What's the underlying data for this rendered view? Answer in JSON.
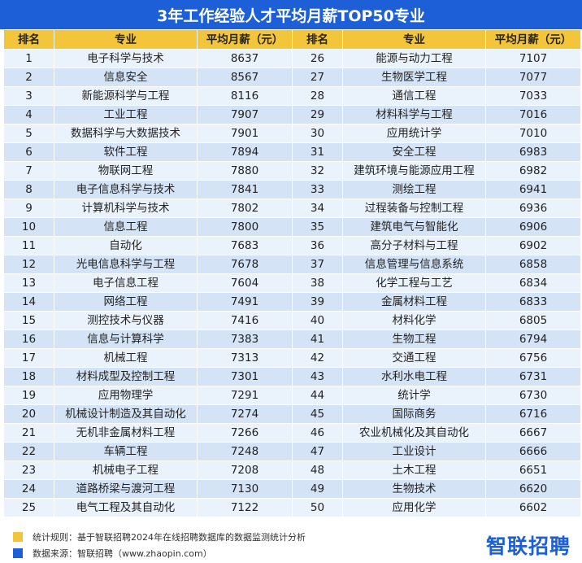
{
  "chart_data": {
    "type": "table",
    "title": "3年工作经验人才平均月薪TOP50专业",
    "columns": [
      "排名",
      "专业",
      "平均月薪（元）"
    ],
    "rows": [
      {
        "rank": "1",
        "major": "电子科学与技术",
        "salary": 8637
      },
      {
        "rank": "2",
        "major": "信息安全",
        "salary": 8567
      },
      {
        "rank": "3",
        "major": "新能源科学与工程",
        "salary": 8116
      },
      {
        "rank": "4",
        "major": "工业工程",
        "salary": 7907
      },
      {
        "rank": "5",
        "major": "数据科学与大数据技术",
        "salary": 7901
      },
      {
        "rank": "6",
        "major": "软件工程",
        "salary": 7894
      },
      {
        "rank": "7",
        "major": "物联网工程",
        "salary": 7880
      },
      {
        "rank": "8",
        "major": "电子信息科学与技术",
        "salary": 7841
      },
      {
        "rank": "9",
        "major": "计算机科学与技术",
        "salary": 7802
      },
      {
        "rank": "10",
        "major": "信息工程",
        "salary": 7800
      },
      {
        "rank": "11",
        "major": "自动化",
        "salary": 7683
      },
      {
        "rank": "12",
        "major": "光电信息科学与工程",
        "salary": 7678
      },
      {
        "rank": "13",
        "major": "电子信息工程",
        "salary": 7604
      },
      {
        "rank": "14",
        "major": "网络工程",
        "salary": 7491
      },
      {
        "rank": "15",
        "major": "测控技术与仪器",
        "salary": 7416
      },
      {
        "rank": "16",
        "major": "信息与计算科学",
        "salary": 7383
      },
      {
        "rank": "17",
        "major": "机械工程",
        "salary": 7313
      },
      {
        "rank": "18",
        "major": "材料成型及控制工程",
        "salary": 7301
      },
      {
        "rank": "19",
        "major": "应用物理学",
        "salary": 7291
      },
      {
        "rank": "20",
        "major": "机械设计制造及其自动化",
        "salary": 7274
      },
      {
        "rank": "21",
        "major": "无机非金属材料工程",
        "salary": 7266
      },
      {
        "rank": "22",
        "major": "车辆工程",
        "salary": 7248
      },
      {
        "rank": "23",
        "major": "机械电子工程",
        "salary": 7208
      },
      {
        "rank": "24",
        "major": "道路桥梁与渡河工程",
        "salary": 7130
      },
      {
        "rank": "25",
        "major": "电气工程及其自动化",
        "salary": 7122
      },
      {
        "rank": "26",
        "major": "能源与动力工程",
        "salary": 7107
      },
      {
        "rank": "27",
        "major": "生物医学工程",
        "salary": 7077
      },
      {
        "rank": "28",
        "major": "通信工程",
        "salary": 7033
      },
      {
        "rank": "29",
        "major": "材料科学与工程",
        "salary": 7016
      },
      {
        "rank": "30",
        "major": "应用统计学",
        "salary": 7010
      },
      {
        "rank": "31",
        "major": "安全工程",
        "salary": 6983
      },
      {
        "rank": "32",
        "major": "建筑环境与能源应用工程",
        "salary": 6982
      },
      {
        "rank": "33",
        "major": "测绘工程",
        "salary": 6941
      },
      {
        "rank": "34",
        "major": "过程装备与控制工程",
        "salary": 6936
      },
      {
        "rank": "35",
        "major": "建筑电气与智能化",
        "salary": 6906
      },
      {
        "rank": "36",
        "major": "高分子材料与工程",
        "salary": 6902
      },
      {
        "rank": "37",
        "major": "信息管理与信息系统",
        "salary": 6858
      },
      {
        "rank": "38",
        "major": "化学工程与工艺",
        "salary": 6834
      },
      {
        "rank": "39",
        "major": "金属材料工程",
        "salary": 6833
      },
      {
        "rank": "40",
        "major": "材料化学",
        "salary": 6805
      },
      {
        "rank": "41",
        "major": "生物工程",
        "salary": 6794
      },
      {
        "rank": "42",
        "major": "交通工程",
        "salary": 6756
      },
      {
        "rank": "43",
        "major": "水利水电工程",
        "salary": 6731
      },
      {
        "rank": "44",
        "major": "统计学",
        "salary": 6730
      },
      {
        "rank": "45",
        "major": "国际商务",
        "salary": 6716
      },
      {
        "rank": "46",
        "major": "农业机械化及其自动化",
        "salary": 6667
      },
      {
        "rank": "47",
        "major": "工业设计",
        "salary": 6666
      },
      {
        "rank": "48",
        "major": "土木工程",
        "salary": 6651
      },
      {
        "rank": "49",
        "major": "生物技术",
        "salary": 6620
      },
      {
        "rank": "50",
        "major": "应用化学",
        "salary": 6602
      }
    ]
  },
  "footer": {
    "rule": "统计规则：基于智联招聘2024年在线招聘数据库的数据监测统计分析",
    "source": "数据来源：智联招聘（www.zhaopin.com）",
    "logo": "智联招聘"
  },
  "colors": {
    "title_bg": "#1d5fd6",
    "header_bg": "#f3c53b",
    "row_light": "#eaf2fb",
    "row_dark": "#d4e4f6"
  }
}
